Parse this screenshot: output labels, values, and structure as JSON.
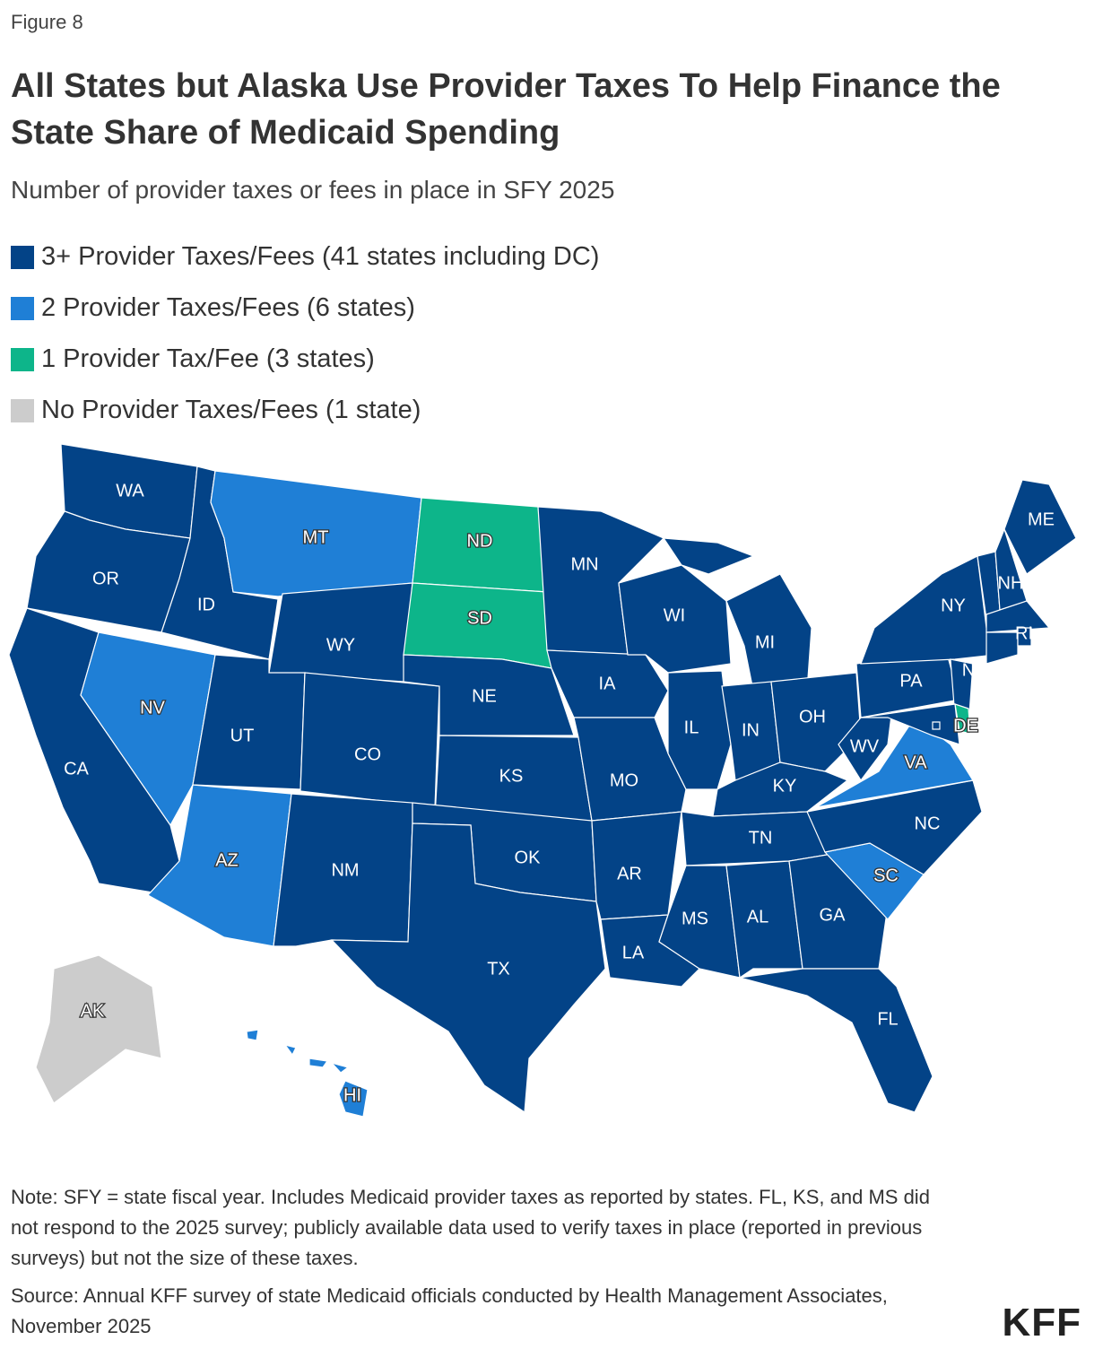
{
  "header": {
    "figure": "Figure 8",
    "title": "All States but Alaska Use Provider Taxes To Help Finance the State Share of Medicaid Spending",
    "subtitle": "Number of provider taxes or fees in place in SFY 2025"
  },
  "legend": [
    {
      "label": "3+ Provider Taxes/Fees (41 states including DC)",
      "color": "#034387"
    },
    {
      "label": "2 Provider Taxes/Fees (6 states)",
      "color": "#1f7fd6"
    },
    {
      "label": "1 Provider Tax/Fee (3 states)",
      "color": "#0db58a"
    },
    {
      "label": "No Provider Taxes/Fees (1 state)",
      "color": "#cccccc"
    }
  ],
  "states": [
    {
      "label": "WA",
      "category": 0
    },
    {
      "label": "OR",
      "category": 0
    },
    {
      "label": "CA",
      "category": 0
    },
    {
      "label": "NV",
      "category": 1
    },
    {
      "label": "ID",
      "category": 0
    },
    {
      "label": "MT",
      "category": 1
    },
    {
      "label": "WY",
      "category": 0
    },
    {
      "label": "UT",
      "category": 0
    },
    {
      "label": "CO",
      "category": 0
    },
    {
      "label": "AZ",
      "category": 1
    },
    {
      "label": "NM",
      "category": 0
    },
    {
      "label": "ND",
      "category": 2
    },
    {
      "label": "SD",
      "category": 2
    },
    {
      "label": "NE",
      "category": 0
    },
    {
      "label": "KS",
      "category": 0
    },
    {
      "label": "OK",
      "category": 0
    },
    {
      "label": "TX",
      "category": 0
    },
    {
      "label": "MN",
      "category": 0
    },
    {
      "label": "IA",
      "category": 0
    },
    {
      "label": "MO",
      "category": 0
    },
    {
      "label": "AR",
      "category": 0
    },
    {
      "label": "LA",
      "category": 0
    },
    {
      "label": "WI",
      "category": 0
    },
    {
      "label": "IL",
      "category": 0
    },
    {
      "label": "MI",
      "category": 0
    },
    {
      "label": "IN",
      "category": 0
    },
    {
      "label": "OH",
      "category": 0
    },
    {
      "label": "KY",
      "category": 0
    },
    {
      "label": "TN",
      "category": 0
    },
    {
      "label": "MS",
      "category": 0
    },
    {
      "label": "AL",
      "category": 0
    },
    {
      "label": "GA",
      "category": 0
    },
    {
      "label": "FL",
      "category": 0
    },
    {
      "label": "SC",
      "category": 1
    },
    {
      "label": "NC",
      "category": 0
    },
    {
      "label": "VA",
      "category": 1
    },
    {
      "label": "WV",
      "category": 0
    },
    {
      "label": "PA",
      "category": 0
    },
    {
      "label": "NY",
      "category": 0
    },
    {
      "label": "NJ",
      "category": 0
    },
    {
      "label": "DE",
      "category": 2
    },
    {
      "label": null,
      "category": 0
    },
    {
      "label": null,
      "category": 0
    },
    {
      "label": "NH",
      "category": 0
    },
    {
      "label": "ME",
      "category": 0
    },
    {
      "label": null,
      "category": 0
    },
    {
      "label": null,
      "category": 0
    },
    {
      "label": "RI",
      "category": 0
    },
    {
      "label": null,
      "category": 0
    },
    {
      "label": "AK",
      "category": 3
    },
    {
      "label": "HI",
      "category": 1
    }
  ],
  "footer": {
    "note": "Note: SFY = state fiscal year. Includes Medicaid provider taxes as reported by states. FL, KS, and MS did not respond to the 2025 survey; publicly available data used to verify taxes in place (reported in previous surveys) but not the size of these taxes.",
    "source": "Source: Annual KFF survey of state Medicaid officials conducted by Health Management Associates, November 2025",
    "logo": "KFF"
  }
}
